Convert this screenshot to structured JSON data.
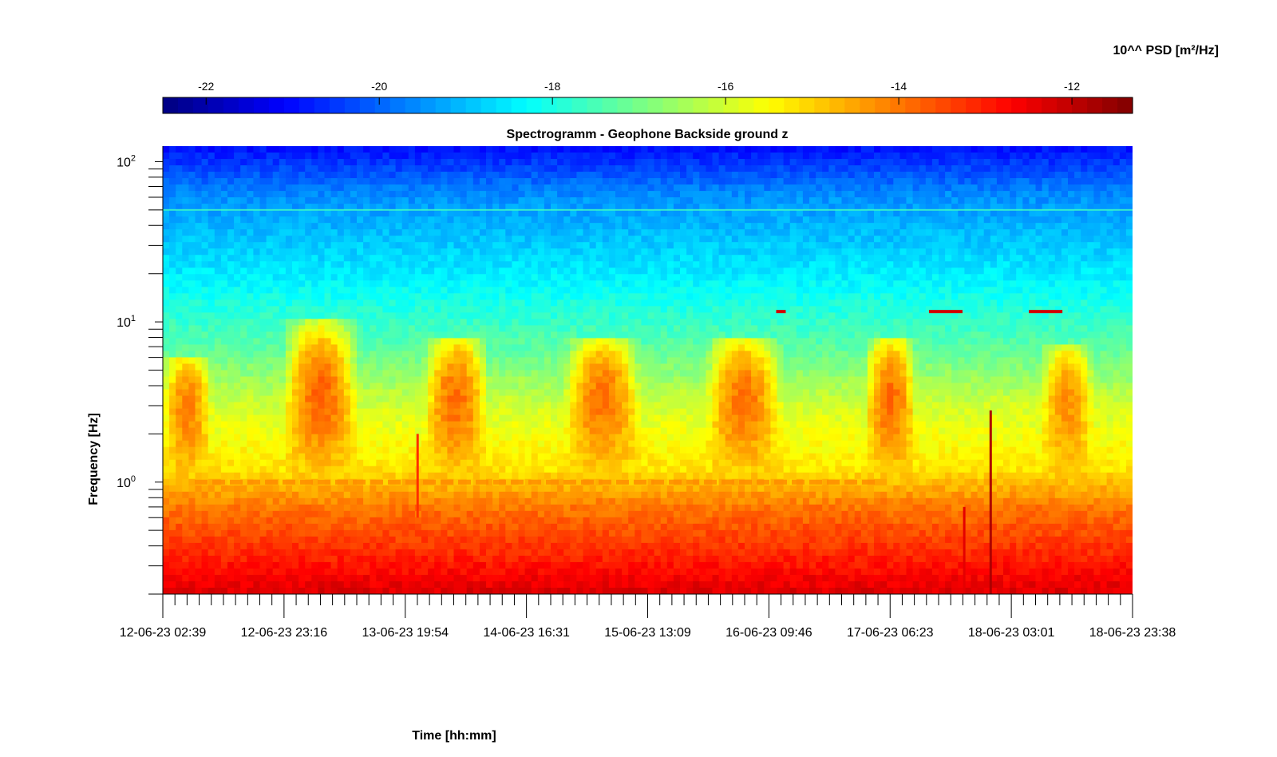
{
  "chart_data": {
    "type": "heatmap",
    "title": "Spectrogramm - Geophone Backside ground z",
    "xlabel": "Time [hh:mm]",
    "ylabel": "Frequency [Hz]",
    "y_scale": "log",
    "ylim": [
      0.2,
      125
    ],
    "xlim": [
      "12-06-23 02:39",
      "18-06-23 23:38"
    ],
    "x_tick_labels": [
      "12-06-23 02:39",
      "12-06-23 23:16",
      "13-06-23 19:54",
      "14-06-23 16:31",
      "15-06-23 13:09",
      "16-06-23 09:46",
      "17-06-23 06:23",
      "18-06-23 03:01",
      "18-06-23 23:38"
    ],
    "y_tick_values": [
      1,
      10,
      100
    ],
    "y_tick_labels": [
      {
        "base": "10",
        "exp": "0"
      },
      {
        "base": "10",
        "exp": "1"
      },
      {
        "base": "10",
        "exp": "2"
      }
    ],
    "colorbar": {
      "label": "10^^ PSD [m²/Hz]",
      "colormap": "jet",
      "range": [
        -22.5,
        -11.3
      ],
      "tick_values": [
        -22,
        -20,
        -18,
        -16,
        -14,
        -12
      ],
      "tick_labels": [
        "-22",
        "-20",
        "-18",
        "-16",
        "-14",
        "-12"
      ],
      "location": "top"
    },
    "features": [
      {
        "frequency_hz": 1.0,
        "description": "persistent ~1 Hz line, interrupted",
        "log_psd": -14.2
      },
      {
        "frequency_hz": 50,
        "description": "narrow line",
        "log_psd": -17.6
      },
      {
        "frequency_hz": 11.6,
        "description": "short tonal segments",
        "log_psd": -12.2
      }
    ],
    "diurnal_activity_bands": [
      {
        "start": "12-06-23 02:39",
        "end": "12-06-23 11:00",
        "band_hz": [
          1.5,
          6
        ],
        "peak_log_psd": -13.8
      },
      {
        "start": "12-06-23 23:00",
        "end": "13-06-23 12:00",
        "band_hz": [
          1.5,
          10
        ],
        "peak_log_psd": -13.4
      },
      {
        "start": "13-06-23 23:00",
        "end": "14-06-23 10:00",
        "band_hz": [
          1.5,
          8
        ],
        "peak_log_psd": -13.5
      },
      {
        "start": "14-06-23 23:00",
        "end": "15-06-23 12:00",
        "band_hz": [
          1.5,
          8
        ],
        "peak_log_psd": -13.6
      },
      {
        "start": "15-06-23 23:00",
        "end": "16-06-23 12:00",
        "band_hz": [
          1.5,
          8
        ],
        "peak_log_psd": -13.6
      },
      {
        "start": "17-06-23 02:00",
        "end": "17-06-23 11:00",
        "band_hz": [
          1.5,
          8
        ],
        "peak_log_psd": -13.5
      },
      {
        "start": "18-06-23 08:00",
        "end": "18-06-23 17:00",
        "band_hz": [
          1.5,
          7
        ],
        "peak_log_psd": -14.0
      }
    ],
    "transients": [
      {
        "time": "17-06-23 19:00",
        "band_hz": [
          0.2,
          0.7
        ],
        "log_psd": -12.4
      },
      {
        "time": "17-06-23 23:30",
        "band_hz": [
          0.2,
          2.8
        ],
        "log_psd": -11.8
      },
      {
        "time": "13-06-23 22:00",
        "band_hz": [
          0.6,
          2.0
        ],
        "log_psd": -13.2
      }
    ]
  }
}
